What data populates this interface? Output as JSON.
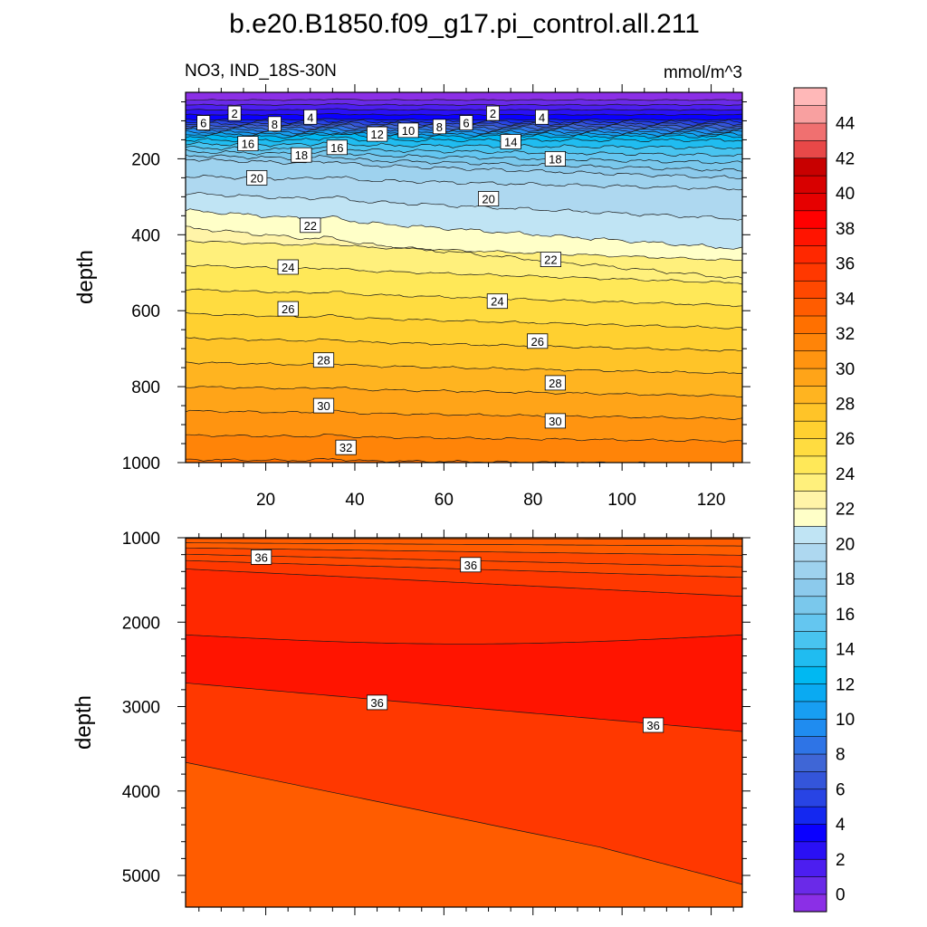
{
  "chart_data": {
    "type": "contour",
    "title": "b.e20.B1850.f09_g17.pi_control.all.211",
    "left_string": "NO3, IND_18S-30N",
    "right_string": "mmol/m^3",
    "y_label": "depth",
    "x_tick_labels": [
      "20",
      "40",
      "60",
      "80",
      "100",
      "120"
    ],
    "x_ticks": [
      20,
      40,
      60,
      80,
      100,
      120
    ],
    "xlim": [
      2,
      127
    ],
    "upper_panel": {
      "ylim": [
        1000,
        25
      ],
      "y_ticks": [
        200,
        400,
        600,
        800,
        1000
      ],
      "y_tick_labels": [
        "200",
        "400",
        "600",
        "800",
        "1000"
      ]
    },
    "lower_panel": {
      "ylim": [
        5375,
        1000
      ],
      "y_ticks": [
        1000,
        2000,
        3000,
        4000,
        5000
      ],
      "y_tick_labels": [
        "1000",
        "2000",
        "3000",
        "4000",
        "5000"
      ]
    },
    "colorbar": {
      "levels": [
        0,
        1,
        2,
        3,
        4,
        5,
        6,
        7,
        8,
        9,
        10,
        11,
        12,
        13,
        14,
        15,
        16,
        17,
        18,
        19,
        20,
        21,
        22,
        23,
        24,
        25,
        26,
        27,
        28,
        29,
        30,
        31,
        32,
        33,
        34,
        35,
        36,
        37,
        38,
        39,
        40,
        41,
        42,
        43,
        44,
        45
      ],
      "tick_labels": [
        "0",
        "2",
        "4",
        "6",
        "8",
        "10",
        "12",
        "14",
        "16",
        "18",
        "20",
        "22",
        "24",
        "26",
        "28",
        "30",
        "32",
        "34",
        "36",
        "38",
        "40",
        "42",
        "44"
      ],
      "colors": [
        "#8b2fe6",
        "#6a2ae8",
        "#4c1ef0",
        "#2a10f5",
        "#0a00ff",
        "#1428f0",
        "#2844e4",
        "#3455da",
        "#3f66d6",
        "#2e74e6",
        "#1f8cf0",
        "#189ef2",
        "#0aaaf2",
        "#00b8f2",
        "#20bcf0",
        "#48c4f0",
        "#64c6f0",
        "#7ac8ec",
        "#8ccaec",
        "#9ed2ee",
        "#aed8f0",
        "#c0e4f4",
        "#ffffc8",
        "#fff4a8",
        "#fff07c",
        "#ffe858",
        "#ffdc40",
        "#ffd030",
        "#ffc428",
        "#ffb420",
        "#ffa418",
        "#ff9410",
        "#ff8408",
        "#ff7000",
        "#ff5c00",
        "#ff4800",
        "#ff3800",
        "#ff2800",
        "#ff1400",
        "#ff0000",
        "#e60000",
        "#d80000",
        "#c80000",
        "#e84848",
        "#f07070",
        "#f8a0a0",
        "#ffb8b8"
      ]
    },
    "upper_contour_labels": [
      {
        "value": 6,
        "x": 6,
        "depth": 105
      },
      {
        "value": 2,
        "x": 13,
        "depth": 80
      },
      {
        "value": 8,
        "x": 22,
        "depth": 108
      },
      {
        "value": 4,
        "x": 30,
        "depth": 90
      },
      {
        "value": 16,
        "x": 16,
        "depth": 160
      },
      {
        "value": 18,
        "x": 28,
        "depth": 190
      },
      {
        "value": 16,
        "x": 36,
        "depth": 170
      },
      {
        "value": 12,
        "x": 45,
        "depth": 135
      },
      {
        "value": 10,
        "x": 52,
        "depth": 125
      },
      {
        "value": 8,
        "x": 59,
        "depth": 115
      },
      {
        "value": 6,
        "x": 65,
        "depth": 105
      },
      {
        "value": 2,
        "x": 71,
        "depth": 80
      },
      {
        "value": 4,
        "x": 82,
        "depth": 90
      },
      {
        "value": 14,
        "x": 75,
        "depth": 155
      },
      {
        "value": 18,
        "x": 85,
        "depth": 200
      },
      {
        "value": 20,
        "x": 18,
        "depth": 250
      },
      {
        "value": 20,
        "x": 70,
        "depth": 305
      },
      {
        "value": 22,
        "x": 30,
        "depth": 375
      },
      {
        "value": 22,
        "x": 84,
        "depth": 465
      },
      {
        "value": 24,
        "x": 25,
        "depth": 485
      },
      {
        "value": 24,
        "x": 72,
        "depth": 575
      },
      {
        "value": 26,
        "x": 25,
        "depth": 595
      },
      {
        "value": 26,
        "x": 81,
        "depth": 680
      },
      {
        "value": 28,
        "x": 33,
        "depth": 730
      },
      {
        "value": 28,
        "x": 85,
        "depth": 790
      },
      {
        "value": 30,
        "x": 33,
        "depth": 850
      },
      {
        "value": 30,
        "x": 85,
        "depth": 890
      },
      {
        "value": 32,
        "x": 38,
        "depth": 960
      }
    ],
    "lower_contour_labels": [
      {
        "value": 36,
        "x": 19,
        "depth": 1230
      },
      {
        "value": 36,
        "x": 66,
        "depth": 1320
      },
      {
        "value": 36,
        "x": 45,
        "depth": 2950
      },
      {
        "value": 36,
        "x": 107,
        "depth": 3220
      }
    ]
  }
}
